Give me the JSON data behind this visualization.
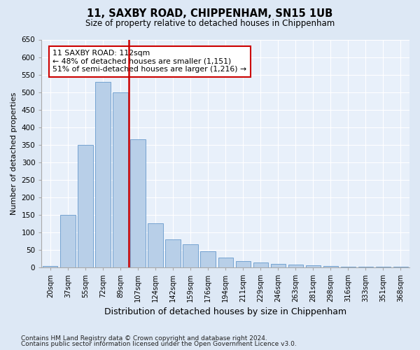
{
  "title1": "11, SAXBY ROAD, CHIPPENHAM, SN15 1UB",
  "title2": "Size of property relative to detached houses in Chippenham",
  "xlabel": "Distribution of detached houses by size in Chippenham",
  "ylabel": "Number of detached properties",
  "categories": [
    "20sqm",
    "37sqm",
    "55sqm",
    "72sqm",
    "89sqm",
    "107sqm",
    "124sqm",
    "142sqm",
    "159sqm",
    "176sqm",
    "194sqm",
    "211sqm",
    "229sqm",
    "246sqm",
    "263sqm",
    "281sqm",
    "298sqm",
    "316sqm",
    "333sqm",
    "351sqm",
    "368sqm"
  ],
  "values": [
    4,
    150,
    350,
    530,
    500,
    365,
    125,
    80,
    65,
    45,
    27,
    18,
    13,
    10,
    7,
    5,
    3,
    2,
    1,
    1,
    1
  ],
  "bar_color": "#b8cfe8",
  "bar_edge_color": "#6699cc",
  "vline_color": "#cc0000",
  "vline_pos": 4.5,
  "annotation_text": "11 SAXBY ROAD: 112sqm\n← 48% of detached houses are smaller (1,151)\n51% of semi-detached houses are larger (1,216) →",
  "annotation_box_color": "#ffffff",
  "annotation_box_edge": "#cc0000",
  "ylim": [
    0,
    650
  ],
  "yticks": [
    0,
    50,
    100,
    150,
    200,
    250,
    300,
    350,
    400,
    450,
    500,
    550,
    600,
    650
  ],
  "footer1": "Contains HM Land Registry data © Crown copyright and database right 2024.",
  "footer2": "Contains public sector information licensed under the Open Government Licence v3.0.",
  "bg_color": "#dde8f5",
  "plot_bg_color": "#e8f0fa"
}
